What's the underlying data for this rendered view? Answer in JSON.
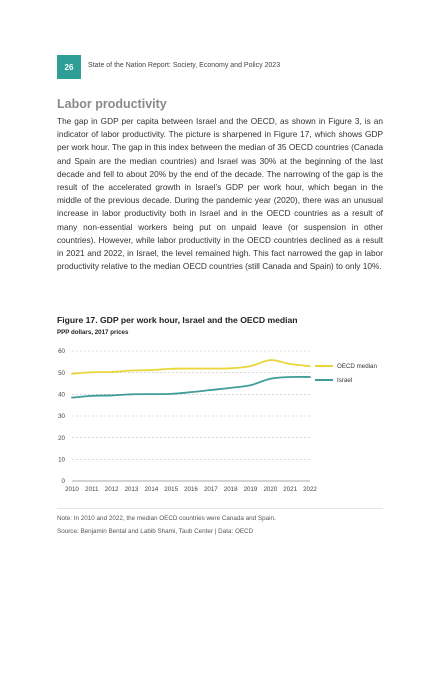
{
  "header": {
    "page_number": "26",
    "running_title": "State of the Nation Report: Society, Economy and Policy 2023"
  },
  "section": {
    "title": "Labor productivity",
    "paragraph": "The gap in GDP per capita between Israel and the OECD, as shown in Figure 3, is an indicator of labor productivity. The picture is sharpened in Figure 17, which shows GDP per work hour. The gap in this index between the median of 35 OECD countries (Canada and Spain are the median countries) and Israel was 30% at the beginning of the last decade and fell to about 20% by the end of the decade. The narrowing of the gap is the result of the accelerated growth in Israel’s GDP per work hour, which began in the middle of the previous decade. During the pandemic year (2020), there was an unusual increase in labor productivity both in Israel and in the OECD countries as a result of many non-essential workers being put on unpaid leave (or suspension in other countries). However, while labor productivity in the OECD countries declined as a result in 2021 and 2022, in Israel, the level remained high. This fact narrowed the gap in labor productivity relative to the median OECD countries (still Canada and Spain) to only 10%."
  },
  "figure": {
    "title": "Figure 17. GDP per work hour, Israel and the OECD median",
    "subtitle": "PPP dollars, 2017 prices",
    "note": "Note: In 2010 and 2022, the median OECD countries were Canada and Spain.",
    "source": "Source: Benjamin Bental and Labib Shami, Taub Center | Data: OECD"
  },
  "chart_data": {
    "type": "line",
    "title": "Figure 17. GDP per work hour, Israel and the OECD median",
    "subtitle": "PPP dollars, 2017 prices",
    "xlabel": "",
    "ylabel": "",
    "x": [
      "2010",
      "2011",
      "2012",
      "2013",
      "2014",
      "2015",
      "2016",
      "2017",
      "2018",
      "2019",
      "2020",
      "2021",
      "2022"
    ],
    "yticks": [
      "0",
      "10",
      "20",
      "30",
      "40",
      "50",
      "60"
    ],
    "ylim": [
      0,
      60
    ],
    "grid": true,
    "legend_position": "right",
    "series": [
      {
        "name": "OECD median",
        "color": "#e8d63a",
        "values": [
          49.5,
          50.2,
          50.3,
          51.0,
          51.2,
          51.8,
          51.9,
          51.9,
          52.0,
          53.0,
          55.8,
          54.0,
          53.0
        ]
      },
      {
        "name": "Israel",
        "color": "#3f9c97",
        "values": [
          38.5,
          39.3,
          39.5,
          40.0,
          40.1,
          40.2,
          41.0,
          42.0,
          43.0,
          44.2,
          47.2,
          48.0,
          48.0
        ]
      }
    ]
  }
}
